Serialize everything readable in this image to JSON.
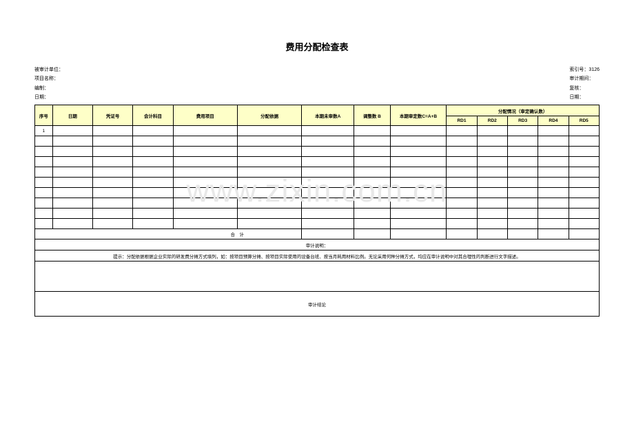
{
  "title": "费用分配检查表",
  "meta": {
    "left": [
      {
        "label": "被审计单位：",
        "value": ""
      },
      {
        "label": "项目名称：",
        "value": ""
      },
      {
        "label": "编制：",
        "value": ""
      },
      {
        "label": "日期：",
        "value": ""
      }
    ],
    "right": [
      {
        "label": "索引号：",
        "value": "3126"
      },
      {
        "label": "审计期间：",
        "value": ""
      },
      {
        "label": "复核：",
        "value": ""
      },
      {
        "label": "日期：",
        "value": ""
      }
    ]
  },
  "headers": {
    "seq": "序号",
    "date": "日期",
    "vno": "凭证号",
    "acct": "会计科目",
    "item": "费用项目",
    "basis": "分配依据",
    "a": "本期未审数A",
    "b": "调整数\nB",
    "c": "本期审定数C=A+B",
    "alloc": "分配情况（审定确认数）",
    "rd": [
      "RD1",
      "RD2",
      "RD3",
      "RD4",
      "RD5"
    ]
  },
  "rows": [
    {
      "seq": "1",
      "date": "",
      "vno": "",
      "acct": "",
      "item": "",
      "basis": "",
      "a": "",
      "b": "",
      "c": "",
      "rd": [
        "",
        "",
        "",
        "",
        ""
      ]
    },
    {
      "seq": "",
      "date": "",
      "vno": "",
      "acct": "",
      "item": "",
      "basis": "",
      "a": "",
      "b": "",
      "c": "",
      "rd": [
        "",
        "",
        "",
        "",
        ""
      ]
    },
    {
      "seq": "",
      "date": "",
      "vno": "",
      "acct": "",
      "item": "",
      "basis": "",
      "a": "",
      "b": "",
      "c": "",
      "rd": [
        "",
        "",
        "",
        "",
        ""
      ]
    },
    {
      "seq": "",
      "date": "",
      "vno": "",
      "acct": "",
      "item": "",
      "basis": "",
      "a": "",
      "b": "",
      "c": "",
      "rd": [
        "",
        "",
        "",
        "",
        ""
      ]
    },
    {
      "seq": "",
      "date": "",
      "vno": "",
      "acct": "",
      "item": "",
      "basis": "",
      "a": "",
      "b": "",
      "c": "",
      "rd": [
        "",
        "",
        "",
        "",
        ""
      ]
    },
    {
      "seq": "",
      "date": "",
      "vno": "",
      "acct": "",
      "item": "",
      "basis": "",
      "a": "",
      "b": "",
      "c": "",
      "rd": [
        "",
        "",
        "",
        "",
        ""
      ]
    },
    {
      "seq": "",
      "date": "",
      "vno": "",
      "acct": "",
      "item": "",
      "basis": "",
      "a": "",
      "b": "",
      "c": "",
      "rd": [
        "",
        "",
        "",
        "",
        ""
      ]
    },
    {
      "seq": "",
      "date": "",
      "vno": "",
      "acct": "",
      "item": "",
      "basis": "",
      "a": "",
      "b": "",
      "c": "",
      "rd": [
        "",
        "",
        "",
        "",
        ""
      ]
    },
    {
      "seq": "",
      "date": "",
      "vno": "",
      "acct": "",
      "item": "",
      "basis": "",
      "a": "",
      "b": "",
      "c": "",
      "rd": [
        "",
        "",
        "",
        "",
        ""
      ]
    },
    {
      "seq": "",
      "date": "",
      "vno": "",
      "acct": "",
      "item": "",
      "basis": "",
      "a": "",
      "b": "",
      "c": "",
      "rd": [
        "",
        "",
        "",
        "",
        ""
      ]
    }
  ],
  "subtotal_label": "合　计",
  "notes": {
    "audit_desc": "审计说明：",
    "hint": "提示：分配依据根据企业实际的研发费分摊方式填列，如：按项目预算分摊、按项目实际使用的设备台班、按当月耗用材料比例。无论采用何种分摊方式，均应在审计说明中对其合理性的判断进行文字描述。",
    "conclusion": "审计结论"
  },
  "watermark": "www.zixin.com.cn"
}
